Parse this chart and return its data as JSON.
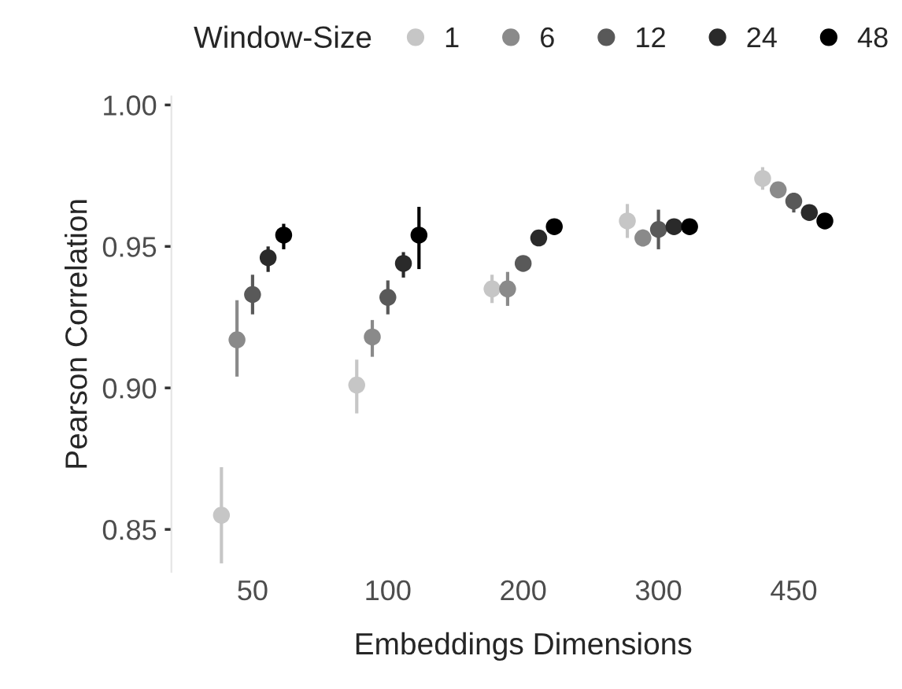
{
  "chart_data": {
    "type": "scatter",
    "xlabel": "Embeddings Dimensions",
    "ylabel": "Pearson Correlation",
    "legend_title": "Window-Size",
    "legend": "top",
    "marker": "circle",
    "grid": false,
    "categories": [
      "50",
      "100",
      "200",
      "300",
      "450"
    ],
    "ylim": [
      0.835,
      1.003
    ],
    "yticks": [
      {
        "value": 0.85,
        "label": "0.85"
      },
      {
        "value": 0.9,
        "label": "0.90"
      },
      {
        "value": 0.95,
        "label": "0.95"
      },
      {
        "value": 1.0,
        "label": "1.00"
      }
    ],
    "series": [
      {
        "name": "1",
        "color": "#c6c6c6",
        "values": [
          0.855,
          0.901,
          0.935,
          0.959,
          0.974
        ],
        "errors": [
          [
            0.838,
            0.872
          ],
          [
            0.891,
            0.91
          ],
          [
            0.93,
            0.94
          ],
          [
            0.953,
            0.965
          ],
          [
            0.97,
            0.978
          ]
        ]
      },
      {
        "name": "6",
        "color": "#8a8a8a",
        "values": [
          0.917,
          0.918,
          0.935,
          0.953,
          0.97
        ],
        "errors": [
          [
            0.904,
            0.931
          ],
          [
            0.911,
            0.924
          ],
          [
            0.929,
            0.941
          ],
          [
            0.95,
            0.956
          ],
          [
            0.968,
            0.972
          ]
        ]
      },
      {
        "name": "12",
        "color": "#595959",
        "values": [
          0.933,
          0.932,
          0.944,
          0.956,
          0.966
        ],
        "errors": [
          [
            0.926,
            0.94
          ],
          [
            0.926,
            0.938
          ],
          [
            0.942,
            0.946
          ],
          [
            0.949,
            0.963
          ],
          [
            0.962,
            0.969
          ]
        ]
      },
      {
        "name": "24",
        "color": "#2a2a2a",
        "values": [
          0.946,
          0.944,
          0.953,
          0.957,
          0.962
        ],
        "errors": [
          [
            0.941,
            0.95
          ],
          [
            0.939,
            0.948
          ],
          [
            0.951,
            0.955
          ],
          [
            0.955,
            0.959
          ],
          [
            0.96,
            0.964
          ]
        ]
      },
      {
        "name": "48",
        "color": "#000000",
        "values": [
          0.954,
          0.954,
          0.957,
          0.957,
          0.959
        ],
        "errors": [
          [
            0.949,
            0.958
          ],
          [
            0.942,
            0.964
          ],
          [
            0.955,
            0.959
          ],
          [
            0.955,
            0.959
          ],
          [
            0.957,
            0.961
          ]
        ]
      }
    ]
  }
}
